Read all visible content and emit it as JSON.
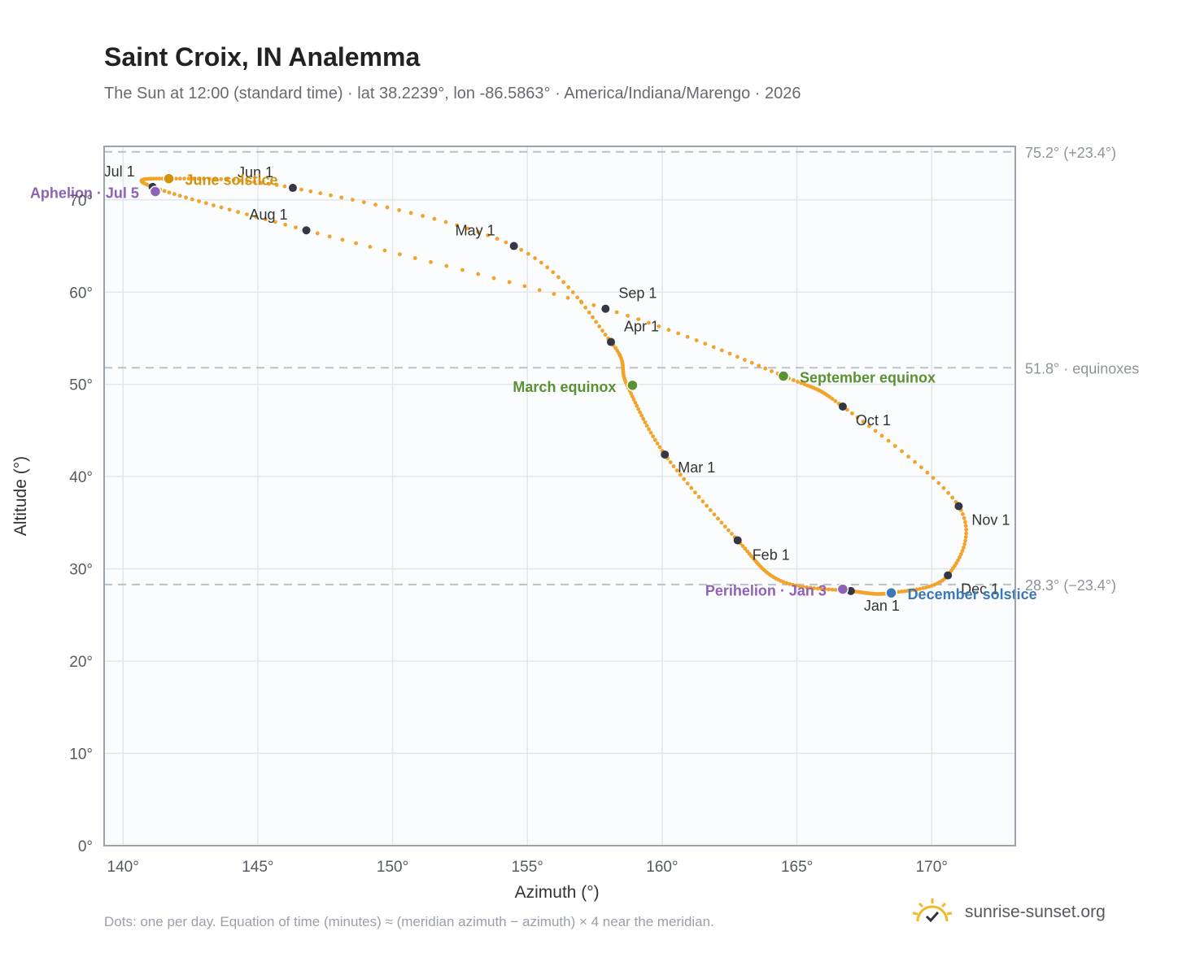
{
  "header": {
    "title": "Saint Croix, IN Analemma",
    "subtitle": "The Sun at 12:00 (standard time) · lat 38.2239°, lon -86.5863° · America/Indiana/Marengo · 2026"
  },
  "footer": {
    "note": "Dots: one per day. Equation of time (minutes) ≈ (meridian azimuth − azimuth) × 4 near the meridian.",
    "brand": "sunrise-sunset.org",
    "brand_icon": "sun-check-icon"
  },
  "chart_data": {
    "type": "scatter",
    "xlabel": "Azimuth (°)",
    "ylabel": "Altitude (°)",
    "xlim": [
      139.3,
      173.1
    ],
    "ylim": [
      0,
      75.8
    ],
    "grid": true,
    "x_ticks": [
      140,
      145,
      150,
      155,
      160,
      165,
      170
    ],
    "x_tick_labels": [
      "140°",
      "145°",
      "150°",
      "155°",
      "160°",
      "165°",
      "170°"
    ],
    "y_ticks": [
      0,
      10,
      20,
      30,
      40,
      50,
      60,
      70
    ],
    "y_tick_labels": [
      "0°",
      "10°",
      "20°",
      "30°",
      "40°",
      "50°",
      "60°",
      "70°"
    ],
    "reference_lines": [
      {
        "y": 75.2,
        "label": "75.2° (+23.4°)"
      },
      {
        "y": 51.8,
        "label": "51.8° · equinoxes"
      },
      {
        "y": 28.3,
        "label": "28.3° (−23.4°)"
      }
    ],
    "analemma_path": [
      {
        "x": 167.0,
        "y": 27.6
      },
      {
        "x": 164.4,
        "y": 28.7
      },
      {
        "x": 162.8,
        "y": 33.1
      },
      {
        "x": 160.1,
        "y": 42.4
      },
      {
        "x": 158.7,
        "y": 49.9
      },
      {
        "x": 158.1,
        "y": 54.6
      },
      {
        "x": 154.5,
        "y": 65.0
      },
      {
        "x": 146.3,
        "y": 71.3
      },
      {
        "x": 141.7,
        "y": 72.3
      },
      {
        "x": 141.1,
        "y": 71.4
      },
      {
        "x": 146.8,
        "y": 66.7
      },
      {
        "x": 157.9,
        "y": 58.2
      },
      {
        "x": 164.5,
        "y": 50.9
      },
      {
        "x": 166.7,
        "y": 47.6
      },
      {
        "x": 171.0,
        "y": 36.8
      },
      {
        "x": 170.6,
        "y": 29.3
      },
      {
        "x": 168.5,
        "y": 27.4
      },
      {
        "x": 167.0,
        "y": 27.6
      }
    ],
    "months": [
      {
        "label": "Jan 1",
        "x": 167.0,
        "y": 27.6,
        "dx": 16,
        "dy": 24
      },
      {
        "label": "Feb 1",
        "x": 162.8,
        "y": 33.1,
        "dx": 18,
        "dy": 24
      },
      {
        "label": "Mar 1",
        "x": 160.1,
        "y": 42.4,
        "dx": 16,
        "dy": 22
      },
      {
        "label": "Apr 1",
        "x": 158.1,
        "y": 54.6,
        "dx": 16,
        "dy": -13
      },
      {
        "label": "May 1",
        "x": 154.5,
        "y": 65.0,
        "dx": -72,
        "dy": -13
      },
      {
        "label": "Jun 1",
        "x": 146.3,
        "y": 71.3,
        "dx": -68,
        "dy": -13
      },
      {
        "label": "Jul 1",
        "x": 141.1,
        "y": 71.4,
        "dx": -60,
        "dy": -13
      },
      {
        "label": "Aug 1",
        "x": 146.8,
        "y": 66.7,
        "dx": -70,
        "dy": -13
      },
      {
        "label": "Sep 1",
        "x": 157.9,
        "y": 58.2,
        "dx": 16,
        "dy": -13
      },
      {
        "label": "Oct 1",
        "x": 166.7,
        "y": 47.6,
        "dx": 16,
        "dy": 23
      },
      {
        "label": "Nov 1",
        "x": 171.0,
        "y": 36.8,
        "dx": 16,
        "dy": 23
      },
      {
        "label": "Dec 1",
        "x": 170.6,
        "y": 29.3,
        "dx": 16,
        "dy": 23
      }
    ],
    "events": [
      {
        "label": "June solstice",
        "x": 141.7,
        "y": 72.3,
        "color": "#d4920e",
        "dx": 20,
        "dy": 8,
        "anchor": "start"
      },
      {
        "label": "Aphelion · Jul 5",
        "x": 141.2,
        "y": 70.9,
        "color": "#8e63b6",
        "dx": -20,
        "dy": 8,
        "anchor": "end"
      },
      {
        "label": "March equinox",
        "x": 158.9,
        "y": 49.9,
        "color": "#5a9132",
        "dx": -20,
        "dy": 8,
        "anchor": "end"
      },
      {
        "label": "September equinox",
        "x": 164.5,
        "y": 50.9,
        "color": "#5a9132",
        "dx": 20,
        "dy": 8,
        "anchor": "start"
      },
      {
        "label": "Perihelion · Jan 3",
        "x": 166.7,
        "y": 27.8,
        "color": "#8e63b6",
        "dx": -20,
        "dy": 8,
        "anchor": "end"
      },
      {
        "label": "December solstice",
        "x": 168.5,
        "y": 27.4,
        "color": "#3a78b8",
        "dx": 20,
        "dy": 8,
        "anchor": "start"
      }
    ],
    "colors": {
      "curve": "#f2a42a",
      "month_dot": "#333844",
      "plot_background": "#fafcfe",
      "plot_border": "#9aa4b0",
      "grid": "#e3e7ec",
      "reference": "#b8c2ca"
    }
  }
}
